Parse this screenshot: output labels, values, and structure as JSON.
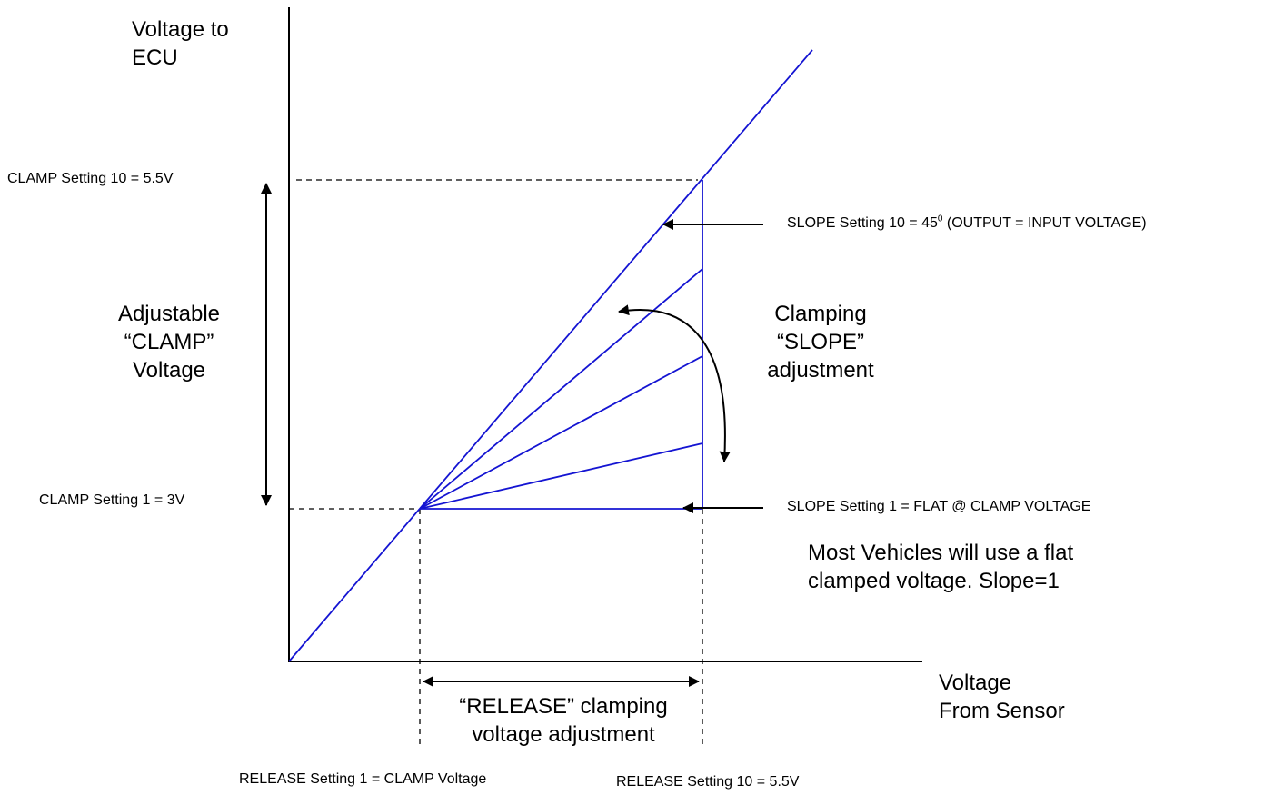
{
  "y_axis_label": {
    "line1": "Voltage to",
    "line2": "ECU"
  },
  "x_axis_label": {
    "line1": "Voltage",
    "line2": "From Sensor"
  },
  "clamp_top_label": "CLAMP Setting 10 = 5.5V",
  "clamp_bottom_label": "CLAMP Setting 1 = 3V",
  "adjustable_clamp": {
    "line1": "Adjustable",
    "line2": "“CLAMP”",
    "line3": "Voltage"
  },
  "slope_top_label": {
    "prefix": "SLOPE Setting 10 = 45",
    "superscript": "0",
    "suffix": " (OUTPUT = INPUT VOLTAGE)"
  },
  "slope_bottom_label": "SLOPE Setting 1 = FLAT @ CLAMP VOLTAGE",
  "clamping_slope": {
    "line1": "Clamping",
    "line2": "“SLOPE”",
    "line3": "adjustment"
  },
  "note": {
    "line1": "Most Vehicles will use a flat",
    "line2": "clamped voltage. Slope=1"
  },
  "release_adjustment": {
    "line1": "“RELEASE” clamping",
    "line2": "voltage adjustment"
  },
  "release_setting_1": "RELEASE Setting 1 = CLAMP Voltage",
  "release_setting_10": "RELEASE Setting 10 = 5.5V",
  "colors": {
    "curve": "#1414d2",
    "axis": "#000000",
    "background": "#ffffff"
  }
}
